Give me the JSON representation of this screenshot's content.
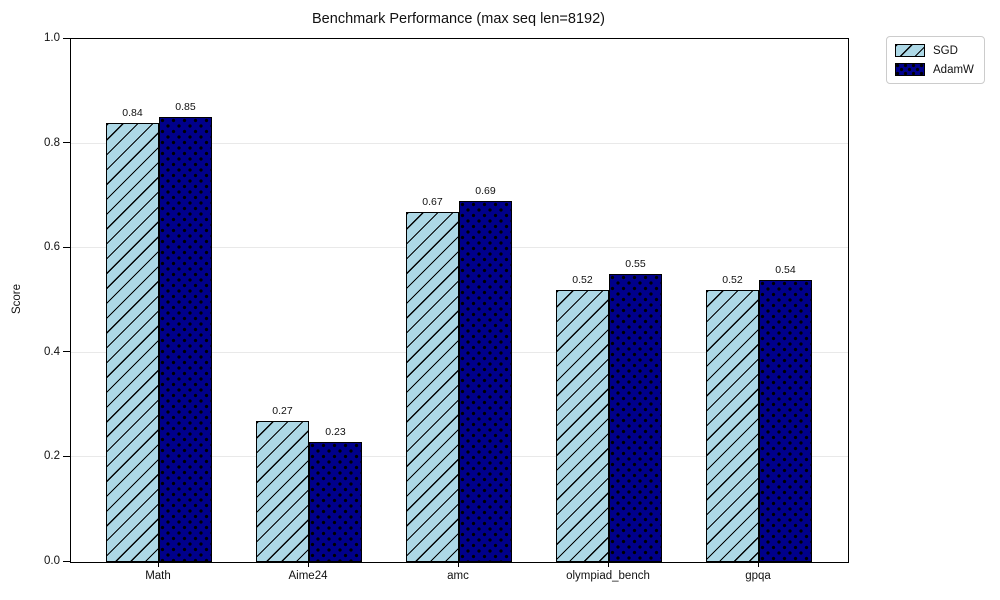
{
  "chart_data": {
    "type": "bar",
    "title": "Benchmark Performance (max seq len=8192)",
    "ylabel": "Score",
    "xlabel": "",
    "categories": [
      "Math",
      "Aime24",
      "amc",
      "olympiad_bench",
      "gpqa"
    ],
    "series": [
      {
        "name": "SGD",
        "values": [
          0.84,
          0.27,
          0.67,
          0.52,
          0.52
        ],
        "color": "#ADD8E6",
        "hatch": "diagonal",
        "edge_color": "#000000"
      },
      {
        "name": "AdamW",
        "values": [
          0.85,
          0.23,
          0.69,
          0.55,
          0.54
        ],
        "color": "#00008B",
        "hatch": "dots",
        "edge_color": "#000000"
      }
    ],
    "value_labels": {
      "SGD": [
        "0.84",
        "0.27",
        "0.67",
        "0.52",
        "0.52"
      ],
      "AdamW": [
        "0.85",
        "0.23",
        "0.69",
        "0.55",
        "0.54"
      ]
    },
    "ylim": [
      0.0,
      1.0
    ],
    "yticks": [
      "0.0",
      "0.2",
      "0.4",
      "0.6",
      "0.8",
      "1.0"
    ],
    "grid": "horizontal",
    "grid_color": "#e9e9e9",
    "legend": {
      "entries": [
        "SGD",
        "AdamW"
      ],
      "position": "upper-right-outside"
    }
  }
}
